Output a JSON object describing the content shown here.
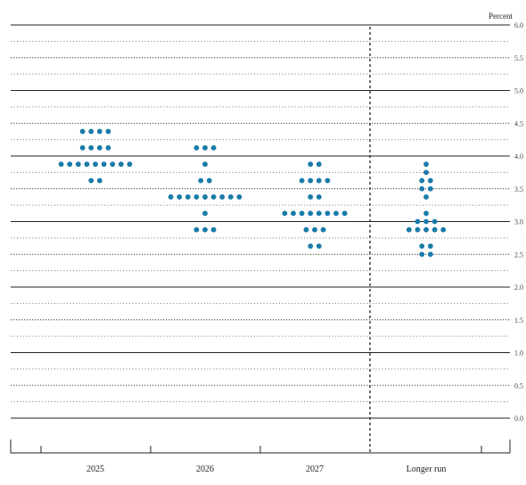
{
  "chart_data": {
    "type": "scatter",
    "title": "",
    "unit_label": "Percent",
    "categories": [
      "2025",
      "2026",
      "2027",
      "Longer run"
    ],
    "ylim": [
      0.0,
      6.0
    ],
    "y_ticks": [
      "0.0",
      "0.5",
      "1.0",
      "1.5",
      "2.0",
      "2.5",
      "3.0",
      "3.5",
      "4.0",
      "4.5",
      "5.0",
      "5.5",
      "6.0"
    ],
    "grid": true,
    "dot_color": "#1a7aa8",
    "series": [
      {
        "category": "2025",
        "dots": [
          {
            "y": 4.375,
            "count": 4
          },
          {
            "y": 4.125,
            "count": 4
          },
          {
            "y": 3.875,
            "count": 9
          },
          {
            "y": 3.625,
            "count": 2
          }
        ]
      },
      {
        "category": "2026",
        "dots": [
          {
            "y": 4.125,
            "count": 3
          },
          {
            "y": 3.875,
            "count": 1
          },
          {
            "y": 3.625,
            "count": 2
          },
          {
            "y": 3.375,
            "count": 9
          },
          {
            "y": 3.125,
            "count": 1
          },
          {
            "y": 2.875,
            "count": 3
          }
        ]
      },
      {
        "category": "2027",
        "dots": [
          {
            "y": 3.875,
            "count": 2
          },
          {
            "y": 3.625,
            "count": 4
          },
          {
            "y": 3.375,
            "count": 2
          },
          {
            "y": 3.125,
            "count": 8
          },
          {
            "y": 2.875,
            "count": 3
          },
          {
            "y": 2.625,
            "count": 2
          }
        ]
      },
      {
        "category": "Longer run",
        "dots": [
          {
            "y": 3.875,
            "count": 1
          },
          {
            "y": 3.75,
            "count": 1
          },
          {
            "y": 3.625,
            "count": 2
          },
          {
            "y": 3.5,
            "count": 2
          },
          {
            "y": 3.375,
            "count": 1
          },
          {
            "y": 3.125,
            "count": 1
          },
          {
            "y": 3.0,
            "count": 3
          },
          {
            "y": 2.875,
            "count": 5
          },
          {
            "y": 2.625,
            "count": 2
          },
          {
            "y": 2.5,
            "count": 2
          }
        ]
      }
    ]
  }
}
